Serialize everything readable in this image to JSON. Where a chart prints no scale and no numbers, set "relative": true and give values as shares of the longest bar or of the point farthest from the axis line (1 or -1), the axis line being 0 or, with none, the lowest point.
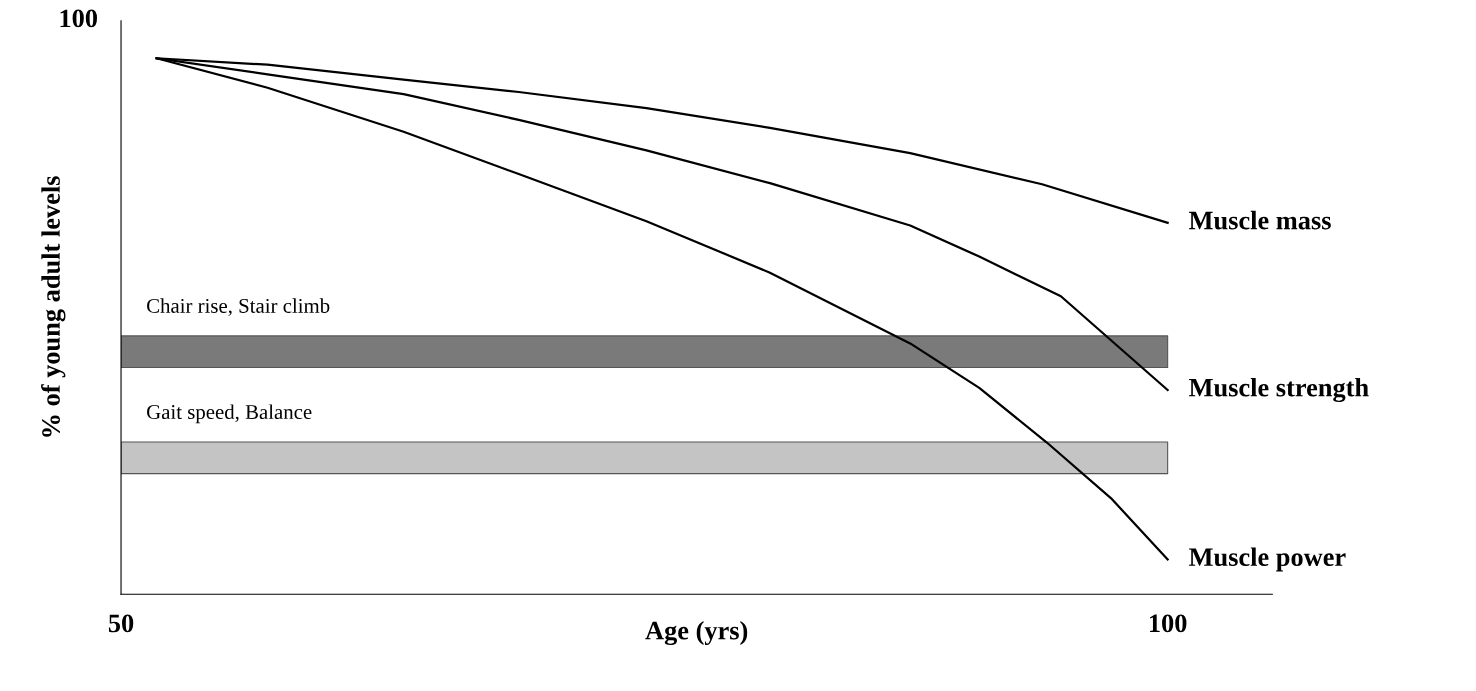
{
  "chart_data": {
    "type": "line",
    "xlabel": "Age (yrs)",
    "ylabel": "% of young adult levels",
    "relative": true,
    "xlim": [
      50,
      105
    ],
    "xticks": [
      50,
      100
    ],
    "tick_labels": "x",
    "legend": false,
    "grid": false,
    "marker": "none",
    "line_style": "solid",
    "annotations": [
      "100"
    ],
    "bands": [
      {
        "axis": "y",
        "from": 0.423,
        "to": 0.482,
        "label": "Chair rise, Stair climb",
        "color": "#7a7a7a"
      },
      {
        "axis": "y",
        "from": 0.225,
        "to": 0.284,
        "label": "Gait speed, Balance",
        "color": "#c4c4c4"
      }
    ],
    "series": [
      {
        "name": "Muscle mass",
        "color": "#000000",
        "x": [
          51.7,
          57,
          63.5,
          69,
          75.1,
          81,
          87.7,
          94,
          100
        ],
        "values": [
          1.0,
          0.988,
          0.96,
          0.937,
          0.907,
          0.87,
          0.823,
          0.765,
          0.693
        ]
      },
      {
        "name": "Muscle strength",
        "color": "#000000",
        "x": [
          51.7,
          57,
          63.5,
          69,
          75.1,
          81,
          87.7,
          91,
          94.9,
          100
        ],
        "values": [
          1.0,
          0.97,
          0.933,
          0.885,
          0.828,
          0.767,
          0.688,
          0.63,
          0.556,
          0.381
        ]
      },
      {
        "name": "Muscle power",
        "color": "#000000",
        "x": [
          51.7,
          57,
          63.5,
          69,
          75.1,
          81,
          87.7,
          91,
          94.2,
          97.3,
          100
        ],
        "values": [
          1.0,
          0.945,
          0.863,
          0.784,
          0.696,
          0.6,
          0.468,
          0.385,
          0.284,
          0.179,
          0.065
        ]
      }
    ]
  }
}
